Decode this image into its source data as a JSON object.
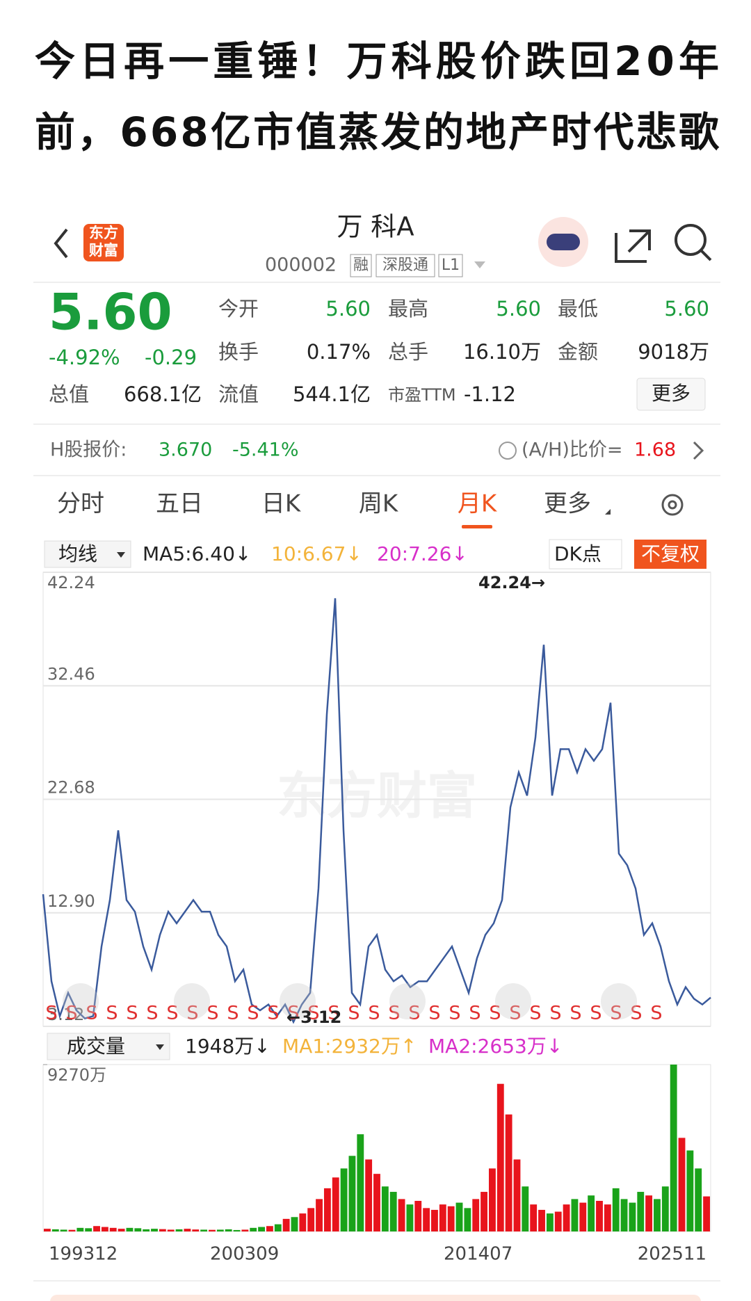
{
  "article_title_lines": [
    "今日再一重锤！万科股价跌回20年",
    "前，668亿市值蒸发的地产时代悲歌"
  ],
  "app": {
    "logo_lines": [
      "东方",
      "财富"
    ],
    "name": "万 科A",
    "code": "000002",
    "badges": [
      "融",
      "深股通",
      "L1"
    ]
  },
  "quote": {
    "price": "5.60",
    "change_pct": "-4.92%",
    "change": "-0.29",
    "fields": [
      {
        "label": "今开",
        "value": "5.60"
      },
      {
        "label": "最高",
        "value": "5.60"
      },
      {
        "label": "最低",
        "value": "5.60"
      },
      {
        "label": "换手",
        "value": "0.17%"
      },
      {
        "label": "总手",
        "value": "16.10万"
      },
      {
        "label": "金额",
        "value": "9018万"
      },
      {
        "label": "总值",
        "value": "668.1亿"
      },
      {
        "label": "流值",
        "value": "544.1亿"
      },
      {
        "label": "市盈TTM",
        "value": "-1.12"
      }
    ],
    "more": "更多"
  },
  "h_share": {
    "label": "H股报价:",
    "price": "3.670",
    "change": "-5.41%",
    "ratio_label": "(A/H)比价=",
    "ratio": "1.68"
  },
  "tabs": [
    "分时",
    "五日",
    "日K",
    "周K",
    "月K",
    "更多"
  ],
  "indicators": {
    "selector": "均线",
    "ma5": "MA5:6.40↓",
    "ma10": "10:6.67↓",
    "ma20": "20:7.26↓",
    "dk": "DK点",
    "adjust": "不复权"
  },
  "volume_bar": {
    "selector": "成交量",
    "current": "1948万↓",
    "ma1": "MA1:2932万↑",
    "ma2": "MA2:2653万↓"
  },
  "watermark": "东方财富",
  "signal_marker": "S",
  "chart_data": [
    {
      "type": "line",
      "color": "#3a5a9c",
      "categories": [
        "199312",
        null,
        null,
        null,
        null,
        null,
        null,
        null,
        null,
        null,
        null,
        null,
        null,
        null,
        null,
        null,
        null,
        null,
        null,
        null,
        "200309",
        null,
        null,
        null,
        null,
        null,
        null,
        null,
        null,
        null,
        null,
        null,
        null,
        null,
        null,
        null,
        null,
        null,
        null,
        null,
        null,
        null,
        null,
        null,
        null,
        null,
        null,
        null,
        "201407",
        null,
        null,
        null,
        null,
        null,
        null,
        null,
        null,
        null,
        null,
        null,
        null,
        null,
        null,
        null,
        null,
        null,
        null,
        null,
        null,
        null,
        null,
        null,
        null,
        null,
        null,
        null,
        null,
        null,
        null,
        null,
        "202511"
      ],
      "values": [
        14.5,
        7,
        4,
        6,
        4.5,
        3.8,
        4,
        10,
        14,
        20,
        14,
        13,
        10,
        8,
        11,
        13,
        12,
        13,
        14,
        13,
        13,
        11,
        10,
        7,
        8,
        5,
        4.5,
        5,
        4,
        5,
        3.5,
        5,
        6,
        15,
        30,
        40,
        20,
        6,
        5,
        10,
        11,
        8,
        7,
        7.5,
        6.5,
        7,
        7,
        8,
        9,
        10,
        8,
        6,
        9,
        11,
        12,
        14,
        22,
        25,
        23,
        28,
        36,
        23,
        27,
        27,
        25,
        27,
        26,
        27,
        31,
        18,
        17,
        15,
        11,
        12,
        10,
        7,
        5,
        6.5,
        5.5,
        5,
        5.6
      ],
      "ylim": [
        3.12,
        42.24
      ],
      "yticks": [
        3.12,
        {
          "value": 12.9,
          "label": "12.90"
        },
        22.68,
        32.46,
        42.24
      ],
      "grid": true,
      "annotations": [
        "42.24→",
        "←3.12"
      ]
    },
    {
      "type": "bar",
      "up_color": "#e8141c",
      "down_color": "#1aa31a",
      "values": [
        150,
        120,
        100,
        90,
        200,
        180,
        300,
        250,
        200,
        150,
        200,
        180,
        120,
        150,
        130,
        100,
        120,
        150,
        110,
        100,
        90,
        100,
        120,
        80,
        100,
        200,
        250,
        300,
        400,
        700,
        800,
        1000,
        1300,
        1800,
        2400,
        3000,
        3500,
        4200,
        5400,
        4000,
        3200,
        2500,
        2200,
        1800,
        1500,
        1700,
        1300,
        1200,
        1500,
        1400,
        1600,
        1300,
        1800,
        2200,
        3500,
        8200,
        6500,
        4000,
        2500,
        1500,
        1200,
        1000,
        1100,
        1500,
        1800,
        1600,
        2000,
        1700,
        1500,
        2400,
        1800,
        1600,
        2200,
        2000,
        1800,
        2500,
        9270,
        5200,
        4500,
        3500,
        1948
      ],
      "ylim": [
        0,
        9270
      ],
      "yticks": [
        {
          "value": 9270,
          "label": "9270万"
        }
      ]
    }
  ]
}
